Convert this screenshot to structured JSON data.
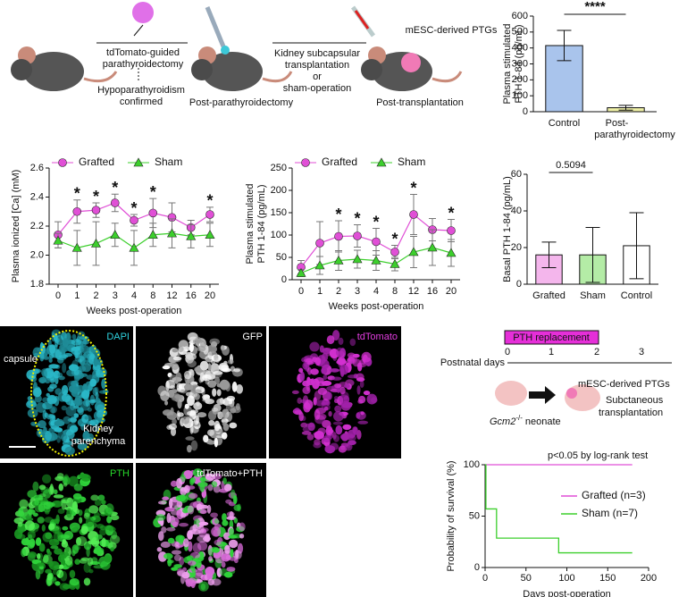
{
  "schematic": {
    "step1": [
      "tdTomato-guided",
      "parathyroidectomy"
    ],
    "step1_note": [
      "Hypoparathyroidism",
      "confirmed"
    ],
    "stage2": "Post-parathyroidectomy",
    "step2": [
      "Kidney subcapsular",
      "transplantation",
      "or",
      "sham-operation"
    ],
    "graft": "mESC-derived PTGs",
    "stage3": "Post-transplantation"
  },
  "micrographs": {
    "dapi": "DAPI",
    "capsule": "capsule",
    "parenchyma": [
      "Kidney",
      "parenchyma"
    ],
    "gfp": "GFP",
    "tdtomato": "tdTomato",
    "pth": "PTH",
    "merge": "tdTomato+PTH"
  },
  "timeline": {
    "treatment": "PTH replacement",
    "axis_label": "Postnatal days",
    "days": [
      0,
      1,
      2,
      3
    ],
    "neonate_gene": "Gcm2",
    "neonate_sup": "-/-",
    "neonate_label": "neonate",
    "graft": "mESC-derived PTGs",
    "procedure": [
      "Subctaneous",
      "transplantation"
    ]
  },
  "chart_data": [
    {
      "type": "bar",
      "ylabel": [
        "Plasma stimulated",
        "PTH 1-84 (pg/mL)"
      ],
      "categories": [
        "Control",
        [
          "Post-",
          "parathyroidectomy"
        ]
      ],
      "values": [
        415,
        25
      ],
      "errors": [
        95,
        15
      ],
      "colors": [
        "#a9c4ec",
        "#eef0a6"
      ],
      "ylim": [
        0,
        600
      ],
      "yticks": [
        0,
        100,
        200,
        300,
        400,
        500,
        600
      ],
      "annotations": [
        {
          "text": "****"
        }
      ]
    },
    {
      "type": "line",
      "ylabel": "Plasma ionized [Ca] (mM)",
      "xlabel": "Weeks post-operation",
      "categories": [
        "0",
        "1",
        "2",
        "3",
        "4",
        "8",
        "12",
        "16",
        "20"
      ],
      "series": [
        {
          "name": "Grafted",
          "color": "#e04fd6",
          "marker": "circle",
          "values": [
            2.14,
            2.3,
            2.31,
            2.36,
            2.24,
            2.29,
            2.26,
            2.19,
            2.28
          ],
          "errors": [
            0.09,
            0.08,
            0.05,
            0.06,
            0.04,
            0.1,
            0.1,
            0.05,
            0.05
          ]
        },
        {
          "name": "Sham",
          "color": "#3ccf2c",
          "marker": "triangle",
          "values": [
            2.1,
            2.05,
            2.08,
            2.14,
            2.05,
            2.14,
            2.15,
            2.13,
            2.14
          ],
          "errors": [
            0.05,
            0.12,
            0.15,
            0.08,
            0.12,
            0.08,
            0.1,
            0.08,
            0.08
          ]
        }
      ],
      "ylim": [
        1.8,
        2.6
      ],
      "yticks": [
        1.8,
        {
          "value": 2,
          "label": "2.0"
        },
        2.2,
        2.4,
        2.6
      ],
      "annotations": [
        {
          "text": "*",
          "category": "1"
        },
        {
          "text": "*",
          "category": "2"
        },
        {
          "text": "*",
          "category": "3"
        },
        {
          "text": "*",
          "category": "4"
        },
        {
          "text": "*",
          "category": "8"
        },
        {
          "text": "*",
          "category": "20"
        }
      ]
    },
    {
      "type": "line",
      "ylabel": [
        "Plasma stimulated",
        "PTH 1-84 (pg/mL)"
      ],
      "xlabel": "Weeks post-operation",
      "categories": [
        "0",
        "1",
        "2",
        "3",
        "4",
        "8",
        "12",
        "16",
        "20"
      ],
      "series": [
        {
          "name": "Grafted",
          "color": "#e04fd6",
          "marker": "circle",
          "values": [
            28,
            82,
            97,
            98,
            85,
            62,
            146,
            112,
            110
          ],
          "errors": [
            15,
            48,
            35,
            25,
            30,
            15,
            45,
            25,
            25
          ]
        },
        {
          "name": "Sham",
          "color": "#3ccf2c",
          "marker": "triangle",
          "values": [
            15,
            32,
            43,
            46,
            43,
            35,
            62,
            72,
            60
          ],
          "errors": [
            8,
            20,
            22,
            20,
            22,
            15,
            35,
            40,
            30
          ]
        }
      ],
      "ylim": [
        0,
        250
      ],
      "yticks": [
        0,
        50,
        100,
        150,
        200,
        250
      ],
      "annotations": [
        {
          "text": "*",
          "category": "2"
        },
        {
          "text": "*",
          "category": "3"
        },
        {
          "text": "*",
          "category": "4"
        },
        {
          "text": "*",
          "category": "8"
        },
        {
          "text": "*",
          "category": "12"
        },
        {
          "text": "*",
          "category": "20"
        }
      ]
    },
    {
      "type": "bar",
      "ylabel": "Basal PTH 1-84 (pg/mL)",
      "categories": [
        "Grafted",
        "Sham",
        "Control"
      ],
      "values": [
        16,
        16,
        21
      ],
      "errors": [
        7,
        15,
        18
      ],
      "colors": [
        "#f4b6ec",
        "#b4eca6",
        "#ffffff"
      ],
      "ylim": [
        0,
        60
      ],
      "yticks": [
        0,
        20,
        40,
        60
      ],
      "annotations": [
        {
          "text": "0.5094"
        }
      ]
    },
    {
      "type": "line",
      "step": true,
      "ylabel": "Probability of survival (%)",
      "xlabel": "Days post-operation",
      "series": [
        {
          "name": "Grafted (n=3)",
          "color": "#e04fd6",
          "x": [
            0,
            180
          ],
          "values": [
            100,
            100
          ]
        },
        {
          "name": "Sham (n=7)",
          "color": "#3ccf2c",
          "x": [
            0,
            1,
            14,
            90,
            180
          ],
          "values": [
            100,
            57,
            28.6,
            14.3,
            14.3
          ]
        }
      ],
      "xlim": [
        0,
        200
      ],
      "xticks": [
        0,
        50,
        100,
        150,
        200
      ],
      "ylim": [
        0,
        100
      ],
      "yticks": [
        0,
        50,
        100
      ],
      "annotations": [
        {
          "text": "p<0.05 by log-rank test"
        }
      ]
    }
  ]
}
